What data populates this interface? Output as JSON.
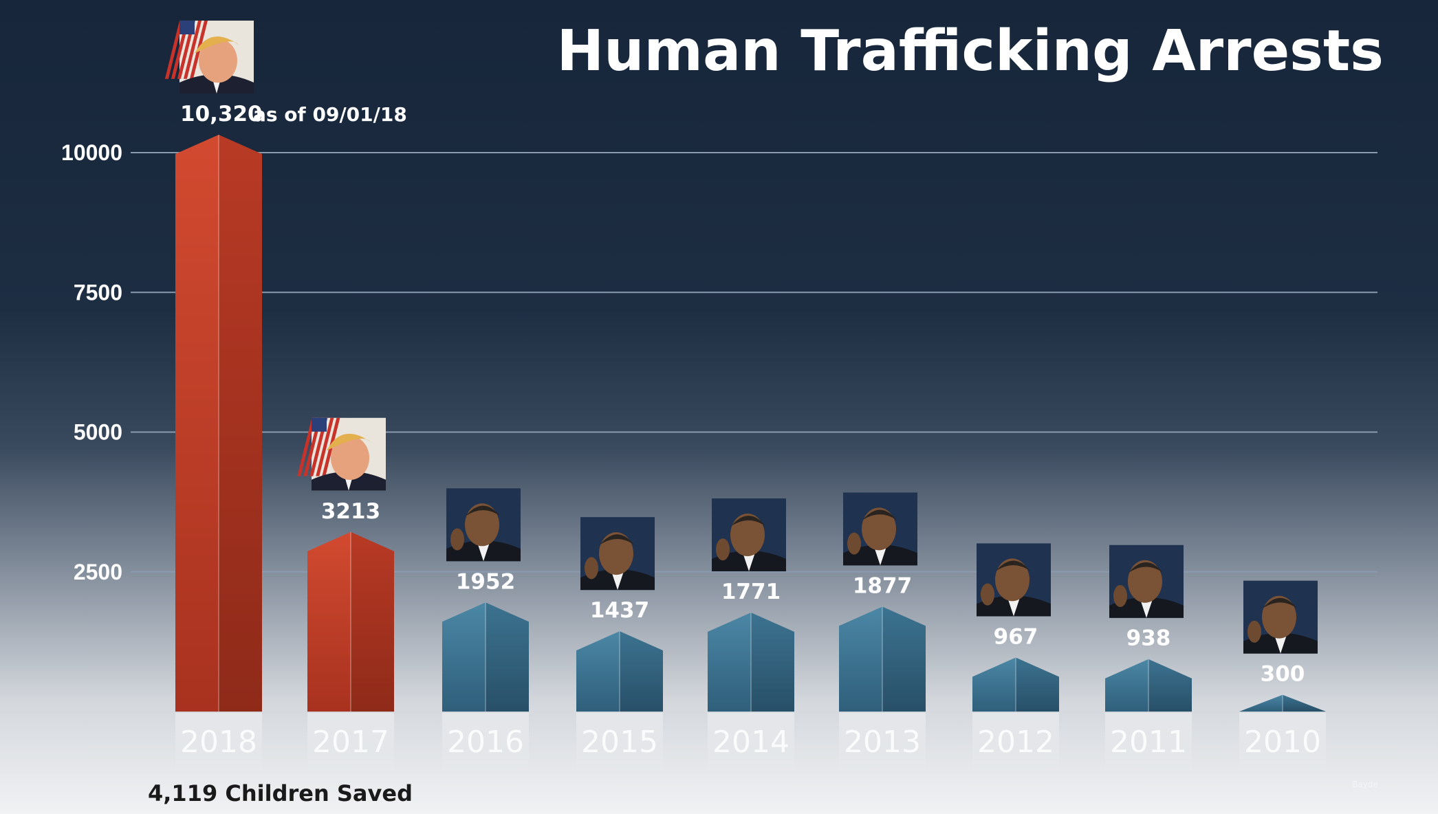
{
  "chart_data": {
    "type": "bar",
    "title": "Human Trafficking Arrests",
    "categories": [
      "2018",
      "2017",
      "2016",
      "2015",
      "2014",
      "2013",
      "2012",
      "2011",
      "2010"
    ],
    "values": [
      10320,
      3213,
      1952,
      1437,
      1771,
      1877,
      967,
      938,
      300
    ],
    "value_labels": [
      "10,320",
      "3213",
      "1952",
      "1437",
      "1771",
      "1877",
      "967",
      "938",
      "300"
    ],
    "bar_colors": [
      "#c9432b",
      "#c9432b",
      "#3f7894",
      "#3f7894",
      "#3f7894",
      "#3f7894",
      "#3f7894",
      "#3f7894",
      "#3f7894"
    ],
    "portraits": [
      "trump",
      "trump",
      "obama",
      "obama",
      "obama",
      "obama",
      "obama",
      "obama",
      "obama"
    ],
    "ylim": [
      0,
      10000
    ],
    "yticks": [
      10000,
      7500,
      5000,
      2500
    ],
    "grid": true,
    "xlabel": "",
    "ylabel": "",
    "annotations": {
      "first_bar_suffix": "as of 09/01/18",
      "bottom_note": "4,119 Children Saved",
      "watermark": "Bayde"
    }
  },
  "colors": {
    "trump_bar": "#c9432b",
    "obama_bar": "#3f7894",
    "gridline": "#8a9bb0"
  }
}
